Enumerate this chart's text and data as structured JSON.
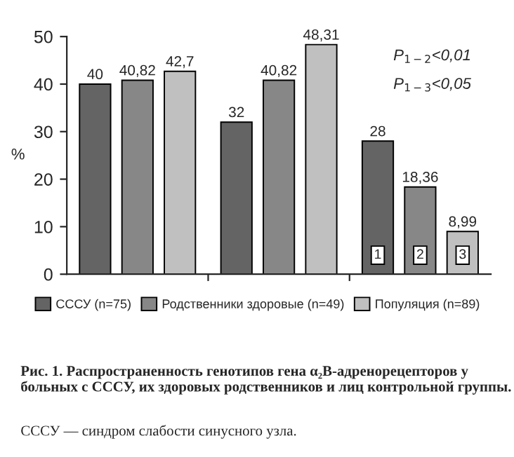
{
  "chart_data": {
    "type": "bar",
    "categories": [
      null,
      null,
      null
    ],
    "series": [
      {
        "name": "СССУ (n=75)",
        "color": "#646464",
        "values": [
          40,
          32,
          28
        ],
        "value_labels": [
          "40",
          "32",
          "28"
        ]
      },
      {
        "name": "Родственники здоровые (n=49)",
        "color": "#878787",
        "values": [
          40.82,
          40.82,
          18.36
        ],
        "value_labels": [
          "40,82",
          "40,82",
          "18,36"
        ]
      },
      {
        "name": "Популяция (n=89)",
        "color": "#c0c0c0",
        "values": [
          42.7,
          48.31,
          8.99
        ],
        "value_labels": [
          "42,7",
          "48,31",
          "8,99"
        ]
      }
    ],
    "ylabel": "%",
    "ylim": [
      0,
      50
    ],
    "yticks": [
      0,
      10,
      20,
      30,
      40,
      50
    ],
    "grid": false,
    "legend": "bottom",
    "annotations": [
      "P$_{1−2}$<0,01",
      "P$_{1−3}$<0,05",
      "1",
      "2",
      "3",
      "Рис. 1. Распространенность генотипов гена α₂B-адренорецепторов у больных с СССУ, их здоровых родственников и лиц контрольной группы.",
      "СССУ — синдром слабости синусного узла."
    ]
  }
}
